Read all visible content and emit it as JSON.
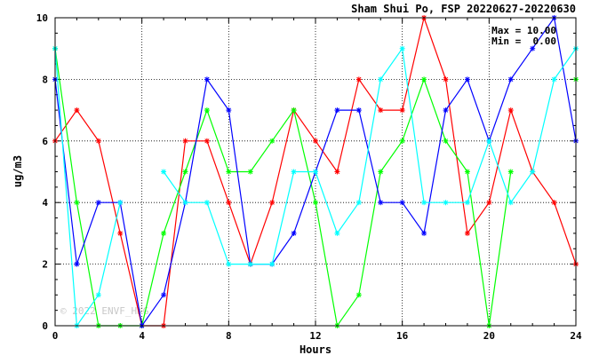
{
  "chart_data": {
    "type": "line",
    "title": "Sham Shui Po, FSP 20220627-20220630",
    "xlabel": "Hours",
    "ylabel": "ug/m3",
    "xlim": [
      0,
      24
    ],
    "ylim": [
      0,
      10
    ],
    "x_ticks": [
      "0",
      "4",
      "8",
      "12",
      "16",
      "20",
      "24"
    ],
    "y_ticks": [
      "0",
      "2",
      "4",
      "6",
      "8",
      "10"
    ],
    "grid": true,
    "stats": {
      "max_label": "Max = 10.00",
      "min_label": "Min =  0.00"
    },
    "watermark": "© 2022 ENVF_HKG",
    "x": [
      0,
      1,
      2,
      3,
      4,
      5,
      6,
      7,
      8,
      9,
      10,
      11,
      12,
      13,
      14,
      15,
      16,
      17,
      18,
      19,
      20,
      21,
      22,
      23,
      24
    ],
    "series": [
      {
        "color": "#ff0000",
        "values": [
          6,
          7,
          6,
          3,
          0,
          0,
          6,
          6,
          4,
          2,
          4,
          7,
          6,
          5,
          8,
          7,
          7,
          10,
          8,
          3,
          4,
          7,
          5,
          4,
          2
        ]
      },
      {
        "color": "#00ff00",
        "values": [
          9,
          4,
          0,
          0,
          0,
          3,
          5,
          7,
          5,
          5,
          6,
          7,
          4,
          0,
          1,
          5,
          6,
          8,
          6,
          5,
          0,
          5,
          null,
          null,
          8
        ]
      },
      {
        "color": "#0000ff",
        "values": [
          8,
          2,
          4,
          4,
          0,
          1,
          4,
          8,
          7,
          2,
          2,
          3,
          5,
          7,
          7,
          4,
          4,
          3,
          7,
          8,
          6,
          8,
          9,
          10,
          6
        ]
      },
      {
        "color": "#00ffff",
        "values": [
          9,
          0,
          1,
          4,
          null,
          5,
          4,
          4,
          2,
          2,
          2,
          5,
          5,
          3,
          4,
          8,
          9,
          4,
          4,
          4,
          6,
          4,
          5,
          8,
          9
        ]
      }
    ]
  }
}
